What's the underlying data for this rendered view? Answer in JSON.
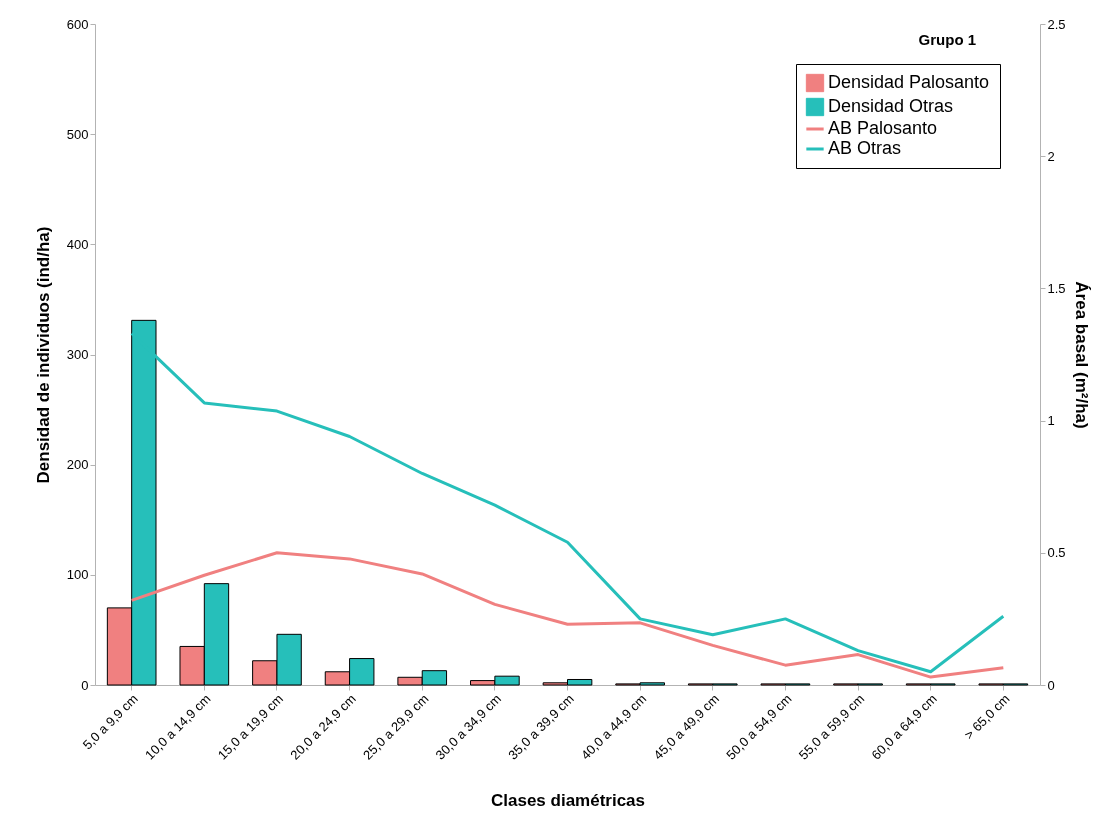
{
  "chart_data": {
    "type": "bar",
    "title": "Grupo 1",
    "xlabel": "Clases diamétricas",
    "ylabel": "Densidad de individuos (ind/ha)",
    "y2label": "Área basal (m²/ha)",
    "categories": [
      "5,0 a 9,9 cm",
      "10,0 a 14,9 cm",
      "15,0 a 19,9 cm",
      "20,0 a 24,9 cm",
      "25,0 a 29,9 cm",
      "30,0 a 34,9 cm",
      "35,0 a 39,9 cm",
      "40,0 a 44,9 cm",
      "45,0 a 49,9 cm",
      "50,0 a 54,9 cm",
      "55,0 a 59,9 cm",
      "60,0 a 64,9 cm",
      "> 65,0 cm"
    ],
    "series": [
      {
        "name": "Densidad Palosanto",
        "color": "#f08080",
        "values": [
          70,
          35,
          22,
          12,
          7,
          4,
          2,
          1,
          1,
          1,
          1,
          1,
          1
        ]
      },
      {
        "name": "Densidad Otras",
        "color": "#26bfba",
        "values": [
          331,
          92,
          46,
          24,
          13,
          8,
          5,
          2,
          1,
          1,
          1,
          1,
          1
        ]
      },
      {
        "name": "AB Palosanto",
        "type": "line",
        "axis": "y2",
        "color": "#f08080",
        "values": [
          0.32,
          0.415,
          0.5,
          0.477,
          0.42,
          0.305,
          0.23,
          0.235,
          0.15,
          0.075,
          0.115,
          0.03,
          0.065
        ]
      },
      {
        "name": "AB Otras",
        "type": "line",
        "axis": "y2",
        "color": "#26bfba",
        "values": [
          1.33,
          1.067,
          1.036,
          0.94,
          0.8,
          0.68,
          0.54,
          0.25,
          0.19,
          0.25,
          0.13,
          0.05,
          0.26
        ]
      }
    ],
    "ylim": [
      0,
      600
    ],
    "yticks": [
      0,
      100,
      200,
      300,
      400,
      500,
      600
    ],
    "y2lim": [
      0,
      2.5
    ],
    "y2ticks": [
      0,
      0.5,
      1,
      1.5,
      2,
      2.5
    ],
    "legend": "top right",
    "grid": false
  }
}
